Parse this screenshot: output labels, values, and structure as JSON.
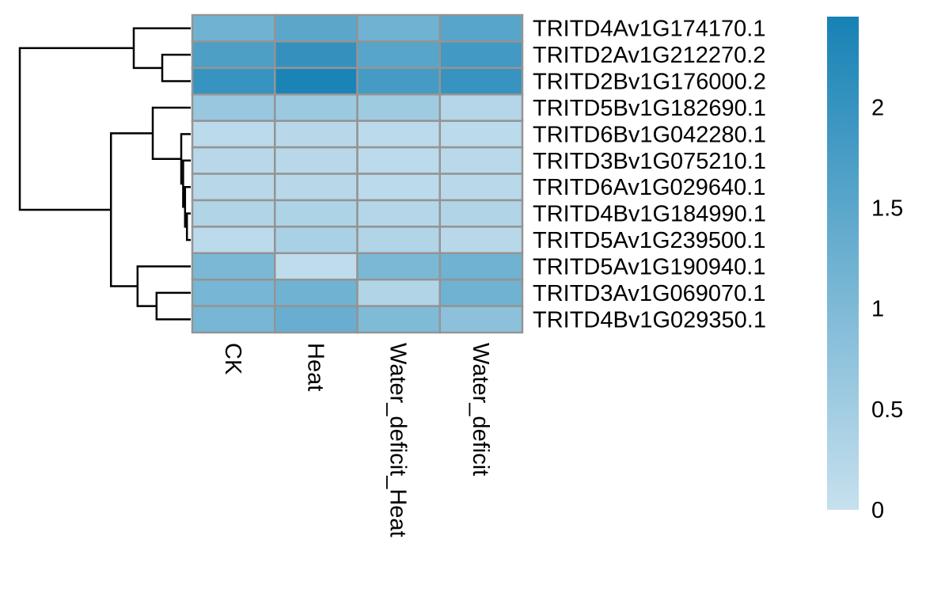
{
  "chart_data": {
    "type": "heatmap",
    "columns": [
      "CK",
      "Heat",
      "Water_deficit_Heat",
      "Water_deficit"
    ],
    "rows": [
      "TRITD4Av1G174170.1",
      "TRITD2Av1G212270.2",
      "TRITD2Bv1G176000.2",
      "TRITD5Bv1G182690.1",
      "TRITD6Bv1G042280.1",
      "TRITD3Bv1G075210.1",
      "TRITD6Av1G029640.1",
      "TRITD4Bv1G184990.1",
      "TRITD5Av1G239500.1",
      "TRITD5Av1G190940.1",
      "TRITD3Av1G069070.1",
      "TRITD4Bv1G029350.1"
    ],
    "values": [
      [
        1.2,
        1.5,
        1.2,
        1.55
      ],
      [
        1.7,
        2.05,
        1.55,
        1.85
      ],
      [
        2.0,
        2.4,
        1.8,
        2.0
      ],
      [
        0.65,
        0.6,
        0.55,
        0.25
      ],
      [
        0.15,
        0.2,
        0.15,
        0.15
      ],
      [
        0.2,
        0.2,
        0.15,
        0.18
      ],
      [
        0.2,
        0.2,
        0.15,
        0.18
      ],
      [
        0.3,
        0.35,
        0.25,
        0.3
      ],
      [
        0.15,
        0.4,
        0.3,
        0.2
      ],
      [
        1.05,
        0.1,
        1.05,
        1.2
      ],
      [
        1.1,
        1.2,
        0.3,
        1.2
      ],
      [
        1.1,
        1.3,
        1.0,
        0.8
      ]
    ],
    "color_scale": {
      "min": 0,
      "max": 2.45,
      "low_color": "#c6e0ee",
      "high_color": "#1782b5",
      "ticks": [
        0,
        0.5,
        1,
        1.5,
        2
      ],
      "tick_labels": [
        "0",
        "0.5",
        "1",
        "1.5",
        "2"
      ]
    },
    "cell_border_color": "#949494",
    "dendrogram": {
      "side": "left",
      "merges": [
        {
          "a": 1,
          "b": 2,
          "height": 0.15
        },
        {
          "a": 0,
          "b": 1,
          "height": 0.3
        },
        {
          "a": 7,
          "b": 8,
          "height": 0.02
        },
        {
          "a": 6,
          "b": 7,
          "height": 0.03
        },
        {
          "a": 5,
          "b": 6,
          "height": 0.04
        },
        {
          "a": 4,
          "b": 5,
          "height": 0.05
        },
        {
          "a": 3,
          "b": 4,
          "height": 0.2
        },
        {
          "a": 10,
          "b": 11,
          "height": 0.18
        },
        {
          "a": 9,
          "b": 10,
          "height": 0.28
        },
        {
          "a": 3,
          "b": 9,
          "height": 0.42
        },
        {
          "a": 0,
          "b": 3,
          "height": 0.9
        }
      ]
    }
  }
}
